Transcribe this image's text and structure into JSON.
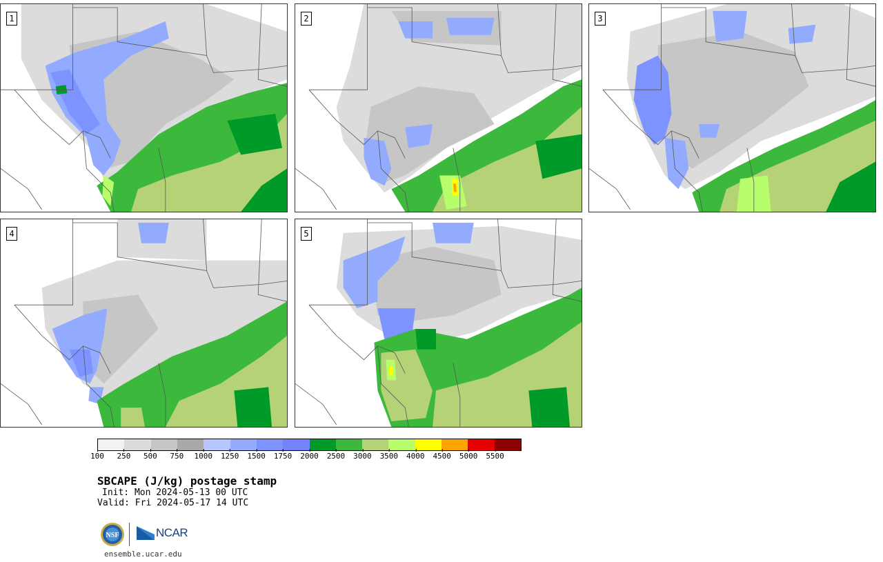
{
  "title": "SBCAPE (J/kg) postage stamp",
  "init_text": "Init: Mon 2024-05-13 00 UTC",
  "valid_text": "Valid: Fri 2024-05-17 14 UTC",
  "site_url": "ensemble.ucar.edu",
  "logos": {
    "nsf": "NSF",
    "ncar": "NCAR"
  },
  "members": [
    {
      "label": "1"
    },
    {
      "label": "2"
    },
    {
      "label": "3"
    },
    {
      "label": "4"
    },
    {
      "label": "5"
    }
  ],
  "colorbar": {
    "tick_labels": [
      "100",
      "250",
      "500",
      "750",
      "1000",
      "1250",
      "1500",
      "1750",
      "2000",
      "2500",
      "3000",
      "3500",
      "4000",
      "4500",
      "5000",
      "5500"
    ],
    "colors": [
      "#f2f2f2",
      "#dcdcdc",
      "#c6c6c6",
      "#a9a9a9",
      "#b7c6ff",
      "#92abff",
      "#7d93ff",
      "#7383ff",
      "#009a28",
      "#3cb93c",
      "#b5d276",
      "#b8fd6b",
      "#ffff00",
      "#ffa500",
      "#e60000",
      "#8b0000"
    ]
  }
}
